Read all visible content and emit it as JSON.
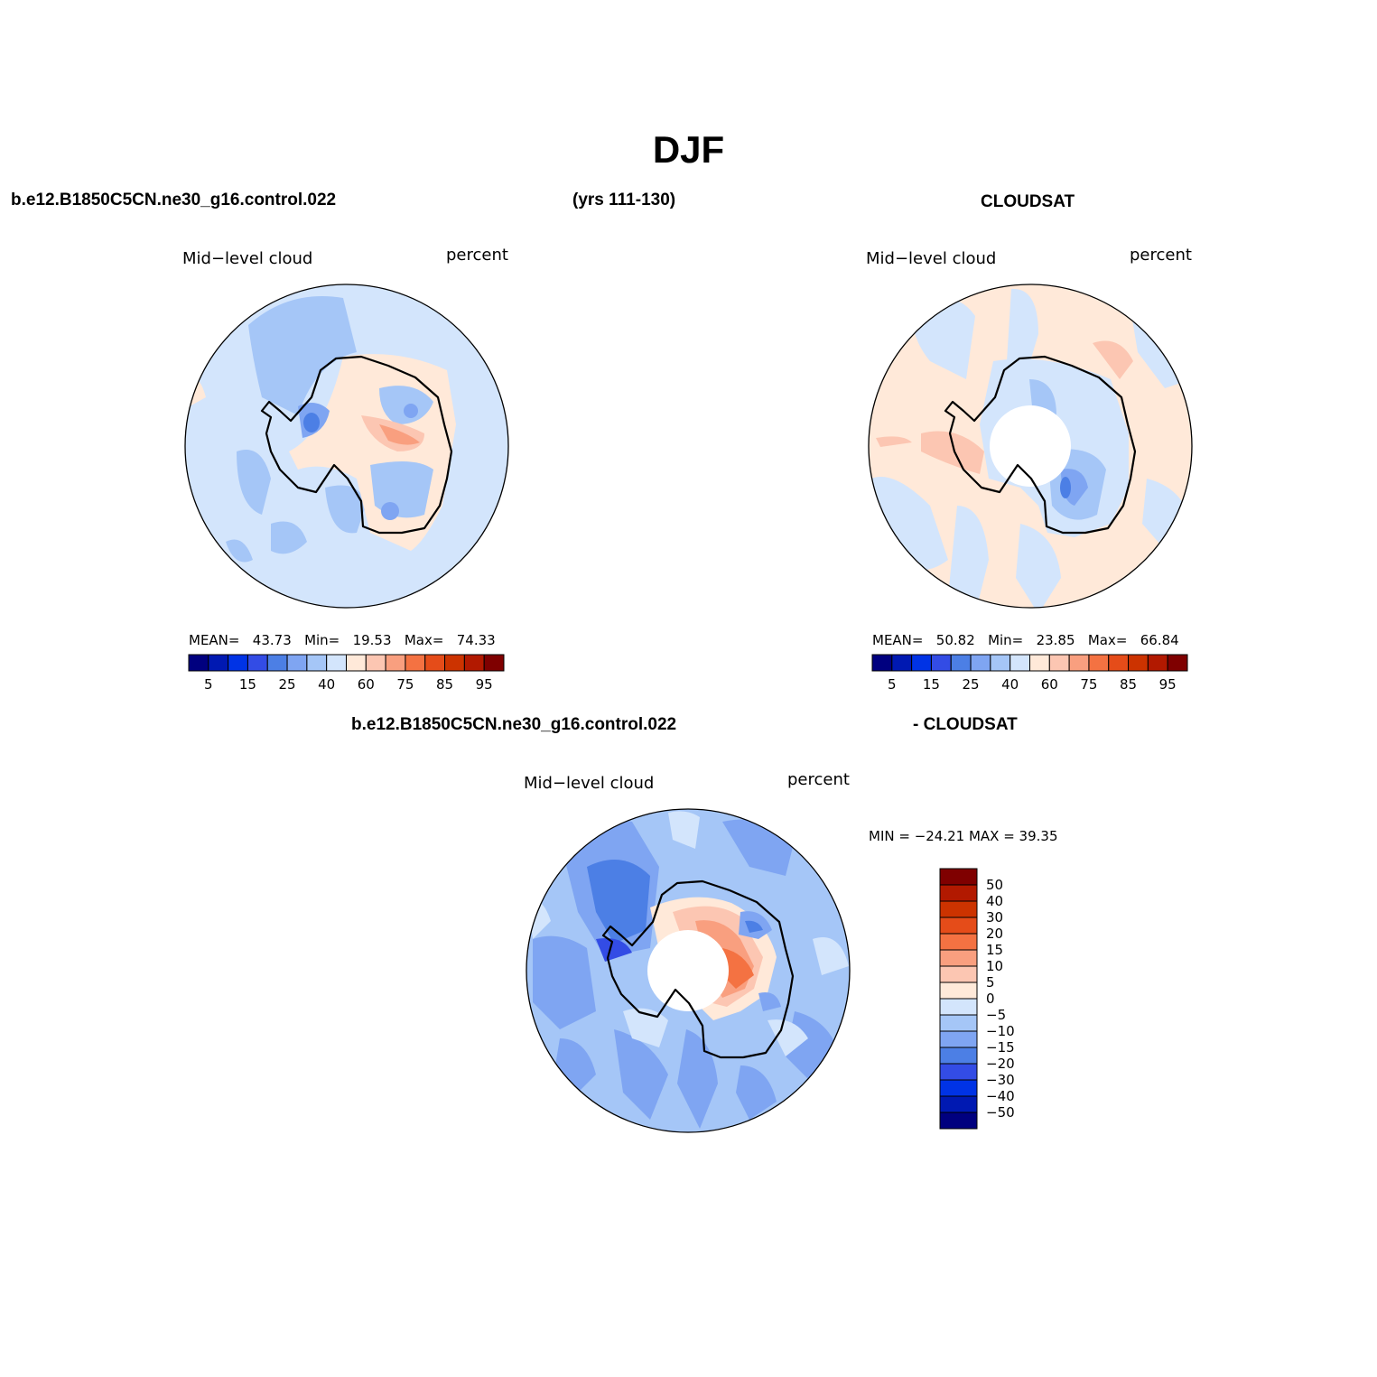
{
  "figure": {
    "title": "DJF",
    "header_case": "b.e12.B1850C5CN.ne30_g16.control.022",
    "header_years": "(yrs 111-130)",
    "header_obs": "CLOUDSAT",
    "diff_header_case": "b.e12.B1850C5CN.ne30_g16.control.022",
    "diff_header_obs": "- CLOUDSAT"
  },
  "panels": [
    {
      "id": "model",
      "variable": "Mid−level cloud",
      "units": "percent",
      "stats": {
        "mean_label": "MEAN=",
        "mean": "43.73",
        "min_label": "Min=",
        "min": "19.53",
        "max_label": "Max=",
        "max": "74.33"
      }
    },
    {
      "id": "obs",
      "variable": "Mid−level cloud",
      "units": "percent",
      "stats": {
        "mean_label": "MEAN=",
        "mean": "50.82",
        "min_label": "Min=",
        "min": "23.85",
        "max_label": "Max=",
        "max": "66.84"
      }
    },
    {
      "id": "diff",
      "variable": "Mid−level cloud",
      "units": "percent",
      "stats_text": "MIN = −24.21 MAX =   39.35"
    }
  ],
  "colorbar_main": {
    "colors": [
      "#00007f",
      "#0019b2",
      "#0033e5",
      "#334ce5",
      "#4c7fe5",
      "#7fa5f2",
      "#a5c6f7",
      "#d3e5fc",
      "#ffe9d9",
      "#fcc6b2",
      "#f99f7f",
      "#f47242",
      "#e54c19",
      "#cc3300",
      "#b21900",
      "#7f0000"
    ],
    "tick_labels": [
      "5",
      "15",
      "25",
      "40",
      "60",
      "75",
      "85",
      "95"
    ]
  },
  "colorbar_diff": {
    "colors_top_to_bottom": [
      "#7f0000",
      "#b21900",
      "#cc3300",
      "#e54c19",
      "#f47242",
      "#f99f7f",
      "#fcc6b2",
      "#ffe9d9",
      "#d3e5fc",
      "#a5c6f7",
      "#7fa5f2",
      "#4c7fe5",
      "#334ce5",
      "#0033e5",
      "#0019b2",
      "#00007f"
    ],
    "tick_labels": [
      "50",
      "40",
      "30",
      "20",
      "15",
      "10",
      "5",
      "0",
      "−5",
      "−10",
      "−15",
      "−20",
      "−30",
      "−40",
      "−50"
    ]
  }
}
